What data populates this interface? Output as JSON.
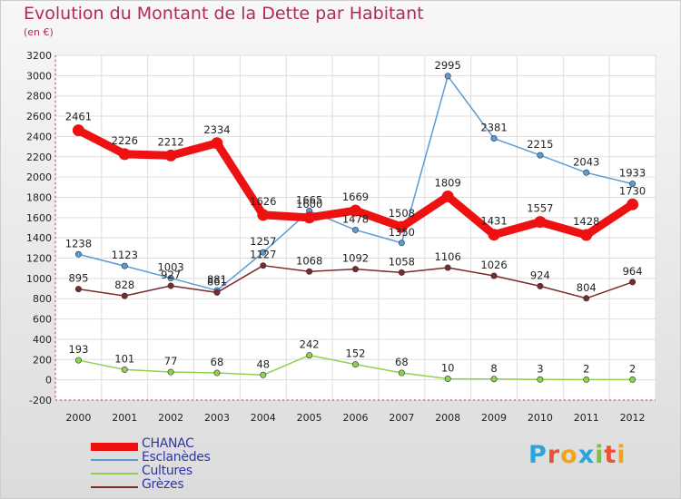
{
  "header": {
    "title": "Evolution du Montant de la Dette par Habitant",
    "subtitle": "(en €)"
  },
  "logo": {
    "letters": [
      {
        "ch": "P",
        "color": "#2aa4dd"
      },
      {
        "ch": "r",
        "color": "#e8533a"
      },
      {
        "ch": "o",
        "color": "#f2a51a"
      },
      {
        "ch": "x",
        "color": "#2aa4dd"
      },
      {
        "ch": "i",
        "color": "#7cc242"
      },
      {
        "ch": "t",
        "color": "#e8533a"
      },
      {
        "ch": "i",
        "color": "#f2a51a"
      }
    ]
  },
  "chart_data": {
    "type": "line",
    "categories": [
      "2000",
      "2001",
      "2002",
      "2003",
      "2004",
      "2005",
      "2006",
      "2007",
      "2008",
      "2009",
      "2010",
      "2011",
      "2012"
    ],
    "ylim": [
      -200,
      3200
    ],
    "yticks": [
      "-200",
      "0",
      "200",
      "400",
      "600",
      "800",
      "1000",
      "1200",
      "1400",
      "1600",
      "1800",
      "2000",
      "2200",
      "2400",
      "2600",
      "2800",
      "3000",
      "3200"
    ],
    "grid": true,
    "legend_position": "bottom-left",
    "series": [
      {
        "name": "CHANAC",
        "color": "#ee1111",
        "values": [
          2461,
          2226,
          2212,
          2334,
          1626,
          1600,
          1669,
          1508,
          1809,
          1431,
          1557,
          1428,
          1730
        ]
      },
      {
        "name": "Esclanèdes",
        "color": "#5b9bd5",
        "values": [
          1238,
          1123,
          1003,
          881,
          1257,
          1665,
          1478,
          1350,
          2995,
          2381,
          2215,
          2043,
          1933
        ]
      },
      {
        "name": "Cultures",
        "color": "#8fd14f",
        "values": [
          193,
          101,
          77,
          68,
          48,
          242,
          152,
          68,
          10,
          8,
          3,
          2,
          2
        ]
      },
      {
        "name": "Grèzes",
        "color": "#7a2a2a",
        "values": [
          895,
          828,
          927,
          861,
          1127,
          1068,
          1092,
          1058,
          1106,
          1026,
          924,
          804,
          964
        ]
      }
    ]
  }
}
